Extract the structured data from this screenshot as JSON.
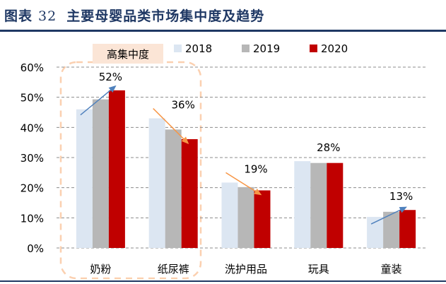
{
  "title": {
    "label": "图表",
    "number": "32",
    "text": "主要母婴品类市场集中度及趋势"
  },
  "chart_data": {
    "type": "bar",
    "categories": [
      "奶粉",
      "纸尿裤",
      "洗护用品",
      "玩具",
      "童装"
    ],
    "series": [
      {
        "name": "2018",
        "values": [
          46,
          43,
          21.7,
          28.8,
          10.3
        ],
        "color": "#dce6f2"
      },
      {
        "name": "2019",
        "values": [
          49.3,
          39.3,
          20.2,
          28.2,
          12
        ],
        "color": "#b7b7b7"
      },
      {
        "name": "2020",
        "values": [
          52.3,
          36.1,
          19.1,
          28.2,
          12.6
        ],
        "color": "#c00000"
      }
    ],
    "data_labels": [
      "52%",
      "36%",
      "19%",
      "28%",
      "13%"
    ],
    "ylim": [
      0,
      60
    ],
    "yticks": [
      "0%",
      "10%",
      "20%",
      "30%",
      "40%",
      "50%",
      "60%"
    ],
    "grid": true,
    "legend_position": "top",
    "annotation": {
      "text": "高集中度",
      "color": "#fbe5d6"
    },
    "trend_arrows": [
      "up",
      "down",
      "down",
      "none",
      "up"
    ],
    "arrow_colors": {
      "up": "#4f81bd",
      "down": "#f79646"
    }
  }
}
